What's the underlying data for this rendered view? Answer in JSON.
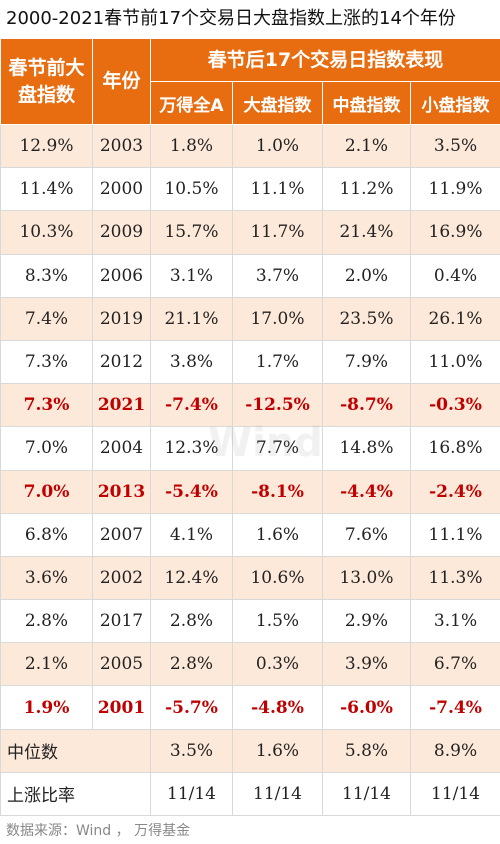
{
  "title": "2000-2021春节前17个交易日大盘指数上涨的14个年份",
  "header": {
    "col_before": "春节前大盘指数",
    "col_year": "年份",
    "group_after": "春节后17个交易日指数表现",
    "sub": [
      "万得全A",
      "大盘指数",
      "中盘指数",
      "小盘指数"
    ]
  },
  "rows": [
    {
      "before": "12.9%",
      "year": "2003",
      "c1": "1.8%",
      "c2": "1.0%",
      "c3": "2.1%",
      "c4": "3.5%",
      "negative": false
    },
    {
      "before": "11.4%",
      "year": "2000",
      "c1": "10.5%",
      "c2": "11.1%",
      "c3": "11.2%",
      "c4": "11.9%",
      "negative": false
    },
    {
      "before": "10.3%",
      "year": "2009",
      "c1": "15.7%",
      "c2": "11.7%",
      "c3": "21.4%",
      "c4": "16.9%",
      "negative": false
    },
    {
      "before": "8.3%",
      "year": "2006",
      "c1": "3.1%",
      "c2": "3.7%",
      "c3": "2.0%",
      "c4": "0.4%",
      "negative": false
    },
    {
      "before": "7.4%",
      "year": "2019",
      "c1": "21.1%",
      "c2": "17.0%",
      "c3": "23.5%",
      "c4": "26.1%",
      "negative": false
    },
    {
      "before": "7.3%",
      "year": "2012",
      "c1": "3.8%",
      "c2": "1.7%",
      "c3": "7.9%",
      "c4": "11.0%",
      "negative": false
    },
    {
      "before": "7.3%",
      "year": "2021",
      "c1": "-7.4%",
      "c2": "-12.5%",
      "c3": "-8.7%",
      "c4": "-0.3%",
      "negative": true
    },
    {
      "before": "7.0%",
      "year": "2004",
      "c1": "12.3%",
      "c2": "7.7%",
      "c3": "14.8%",
      "c4": "16.8%",
      "negative": false
    },
    {
      "before": "7.0%",
      "year": "2013",
      "c1": "-5.4%",
      "c2": "-8.1%",
      "c3": "-4.4%",
      "c4": "-2.4%",
      "negative": true
    },
    {
      "before": "6.8%",
      "year": "2007",
      "c1": "4.1%",
      "c2": "1.6%",
      "c3": "7.6%",
      "c4": "11.1%",
      "negative": false
    },
    {
      "before": "3.6%",
      "year": "2002",
      "c1": "12.4%",
      "c2": "10.6%",
      "c3": "13.0%",
      "c4": "11.3%",
      "negative": false
    },
    {
      "before": "2.8%",
      "year": "2017",
      "c1": "2.8%",
      "c2": "1.5%",
      "c3": "2.9%",
      "c4": "3.1%",
      "negative": false
    },
    {
      "before": "2.1%",
      "year": "2005",
      "c1": "2.8%",
      "c2": "0.3%",
      "c3": "3.9%",
      "c4": "6.7%",
      "negative": false
    },
    {
      "before": "1.9%",
      "year": "2001",
      "c1": "-5.7%",
      "c2": "-4.8%",
      "c3": "-6.0%",
      "c4": "-7.4%",
      "negative": true
    }
  ],
  "median": {
    "label": "中位数",
    "c1": "3.5%",
    "c2": "1.6%",
    "c3": "5.8%",
    "c4": "8.9%"
  },
  "ratio": {
    "label": "上涨比率",
    "c1": "11/14",
    "c2": "11/14",
    "c3": "11/14",
    "c4": "11/14"
  },
  "watermark": "Wind",
  "source": "数据来源：Wind ， 万得基金",
  "colors": {
    "header": "#e86c10",
    "band": "#fde9d9",
    "negative": "#c00000"
  }
}
